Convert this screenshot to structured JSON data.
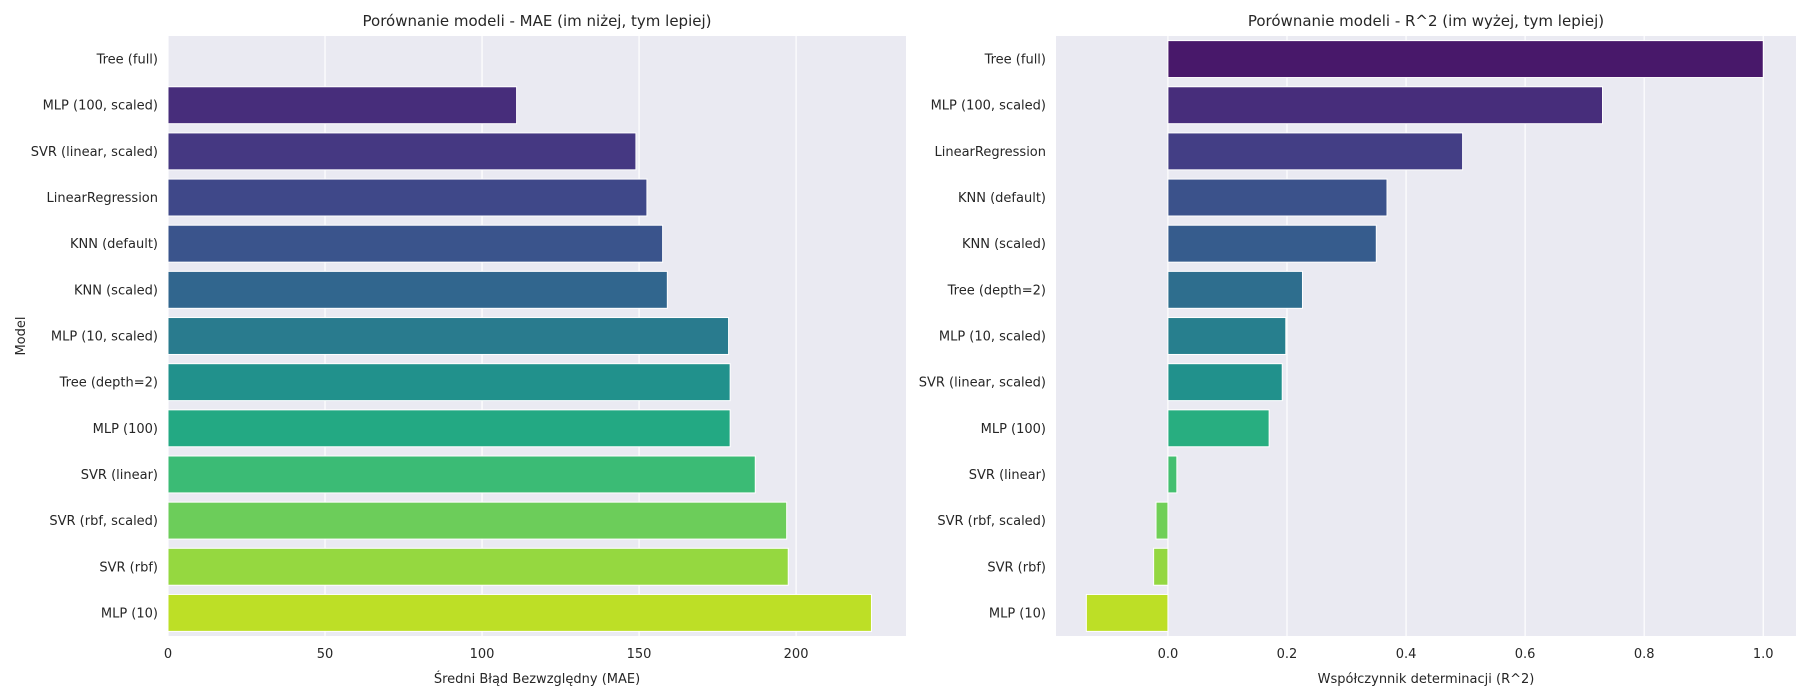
{
  "chart_data": [
    {
      "type": "bar",
      "orientation": "horizontal",
      "title": "Porównanie modeli - MAE (im niżej, tym lepiej)",
      "xlabel": "Średni Błąd Bezwzględny (MAE)",
      "ylabel": "Model",
      "xlim": [
        0,
        235
      ],
      "xticks": [
        0,
        50,
        100,
        150,
        200
      ],
      "grid": true,
      "categories": [
        "Tree (full)",
        "MLP (100, scaled)",
        "SVR (linear, scaled)",
        "LinearRegression",
        "KNN (default)",
        "KNN (scaled)",
        "MLP (10, scaled)",
        "Tree (depth=2)",
        "MLP (100)",
        "SVR (linear)",
        "SVR (rbf, scaled)",
        "SVR (rbf)",
        "MLP (10)"
      ],
      "values": [
        0,
        111,
        149,
        152.5,
        157.5,
        159,
        178.5,
        179,
        179,
        187,
        197,
        197.5,
        224
      ],
      "colors": [
        "#482173",
        "#472d7b",
        "#453882",
        "#3f4889",
        "#3a548c",
        "#31668e",
        "#297b8e",
        "#21918c",
        "#23a983",
        "#3bbb75",
        "#6ccd5a",
        "#95d840",
        "#bddf26"
      ]
    },
    {
      "type": "bar",
      "orientation": "horizontal",
      "title": "Porównanie modeli - R^2 (im wyżej, tym lepiej)",
      "xlabel": "Współczynnik determinacji (R^2)",
      "ylabel": "",
      "xlim": [
        -0.188,
        1.055
      ],
      "xticks": [
        0.0,
        0.2,
        0.4,
        0.6,
        0.8,
        1.0
      ],
      "tick_labels": [
        "0.0",
        "0.2",
        "0.4",
        "0.6",
        "0.8",
        "1.0"
      ],
      "grid": true,
      "categories": [
        "Tree (full)",
        "MLP (100, scaled)",
        "LinearRegression",
        "KNN (default)",
        "KNN (scaled)",
        "Tree (depth=2)",
        "MLP (10, scaled)",
        "SVR (linear, scaled)",
        "MLP (100)",
        "SVR (linear)",
        "SVR (rbf, scaled)",
        "SVR (rbf)",
        "MLP (10)"
      ],
      "values": [
        1.0,
        0.73,
        0.495,
        0.368,
        0.35,
        0.226,
        0.198,
        0.192,
        0.17,
        0.015,
        -0.02,
        -0.024,
        -0.137
      ],
      "colors": [
        "#48186a",
        "#472d7b",
        "#433e85",
        "#3b528b",
        "#365c8d",
        "#2e6e8e",
        "#277f8e",
        "#21918c",
        "#28ae80",
        "#44bf70",
        "#70cf57",
        "#93d741",
        "#bddf26"
      ]
    }
  ]
}
